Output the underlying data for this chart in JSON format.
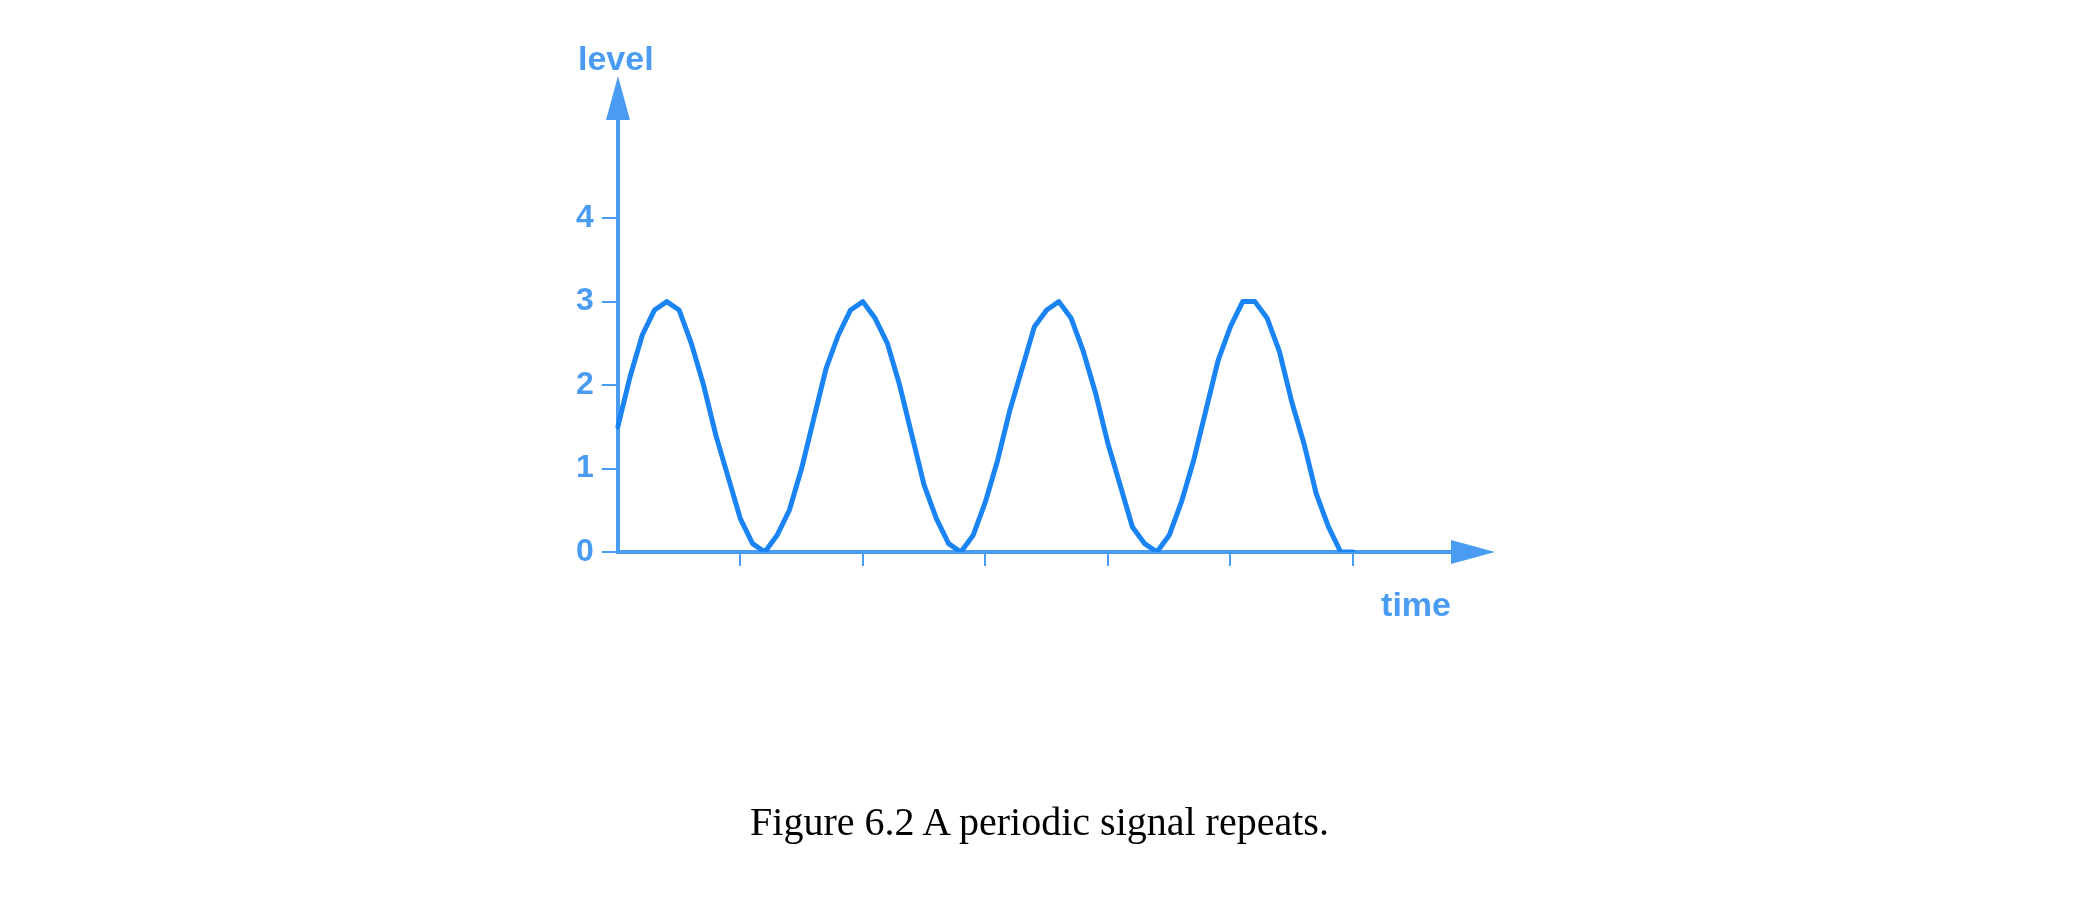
{
  "chart_data": {
    "type": "line",
    "xlabel": "time",
    "ylabel": "level",
    "categories": [
      null,
      null,
      null,
      null,
      null,
      null,
      null,
      null,
      null,
      null,
      null,
      null,
      null,
      null,
      null,
      null,
      null,
      null,
      null,
      null,
      null,
      null,
      null,
      null,
      null,
      null,
      null,
      null,
      null,
      null,
      null,
      null,
      null,
      null,
      null,
      null,
      null,
      null,
      null,
      null,
      null,
      null,
      null,
      null,
      null,
      null,
      null,
      null,
      null,
      null,
      null,
      null,
      null,
      null,
      null,
      null,
      null,
      null,
      null,
      null,
      null,
      null,
      null,
      null,
      null,
      null,
      null,
      null,
      null
    ],
    "series": [
      {
        "color": "#1a84f5",
        "values": [
          1.5,
          2.1,
          2.6,
          2.9,
          3.0,
          2.9,
          2.5,
          2.0,
          1.4,
          0.9,
          0.4,
          0.1,
          0.0,
          0.2,
          0.5,
          1.0,
          1.6,
          2.2,
          2.6,
          2.9,
          3.0,
          2.8,
          2.5,
          2.0,
          1.4,
          0.8,
          0.4,
          0.1,
          0.0,
          0.2,
          0.6,
          1.1,
          1.7,
          2.2,
          2.7,
          2.9,
          3.0,
          2.8,
          2.4,
          1.9,
          1.3,
          0.8,
          0.3,
          0.1,
          0.0,
          0.2,
          0.6,
          1.1,
          1.7,
          2.3,
          2.7,
          3.0,
          3.0,
          2.8,
          2.4,
          1.8,
          1.3,
          0.7,
          0.3,
          0.0,
          0.0,
          null,
          null,
          null,
          null,
          null,
          null,
          null,
          null
        ]
      }
    ],
    "ylim": [
      0,
      5.2
    ],
    "yticks": [
      0,
      1,
      2,
      3,
      4
    ],
    "tick_labels": "y",
    "marker": "none",
    "line_style": "solid",
    "annotations": [
      "Figure 6.2  A periodic signal repeats."
    ]
  }
}
